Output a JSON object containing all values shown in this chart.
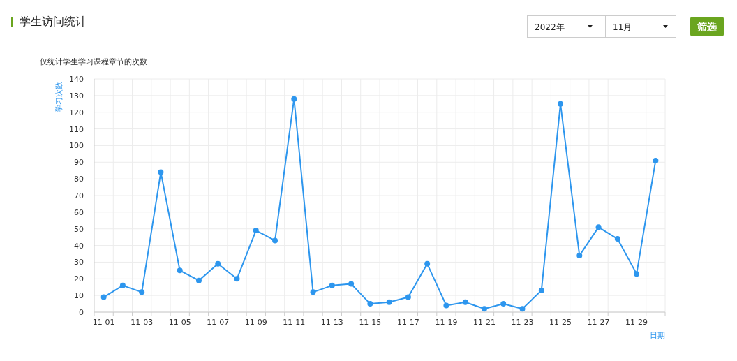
{
  "chart_data": {
    "type": "line",
    "title": "学生访问统计",
    "subtitle": "仅统计学生学习课程章节的次数",
    "xlabel": "日期",
    "ylabel": "学习次数",
    "annotations": [
      "2022年",
      "11月",
      "筛选"
    ],
    "categories": [
      "11-01",
      null,
      "11-03",
      null,
      "11-05",
      null,
      "11-07",
      null,
      "11-09",
      null,
      "11-11",
      null,
      "11-13",
      null,
      "11-15",
      null,
      "11-17",
      null,
      "11-19",
      null,
      "11-21",
      null,
      "11-23",
      null,
      "11-25",
      null,
      "11-27",
      null,
      "11-29",
      null
    ],
    "series": [
      {
        "color": "#2d96ee",
        "values": [
          9,
          16,
          12,
          84,
          25,
          19,
          29,
          20,
          49,
          43,
          128,
          12,
          16,
          17,
          5,
          6,
          9,
          29,
          4,
          6,
          2,
          5,
          2,
          13,
          125,
          34,
          51,
          44,
          23,
          91
        ]
      }
    ],
    "ylim": [
      0,
      140
    ],
    "yticks": [
      0,
      10,
      20,
      30,
      40,
      50,
      60,
      70,
      80,
      90,
      100,
      110,
      120,
      130,
      140
    ],
    "grid": true,
    "marker": "circle",
    "line_style": "solid"
  }
}
